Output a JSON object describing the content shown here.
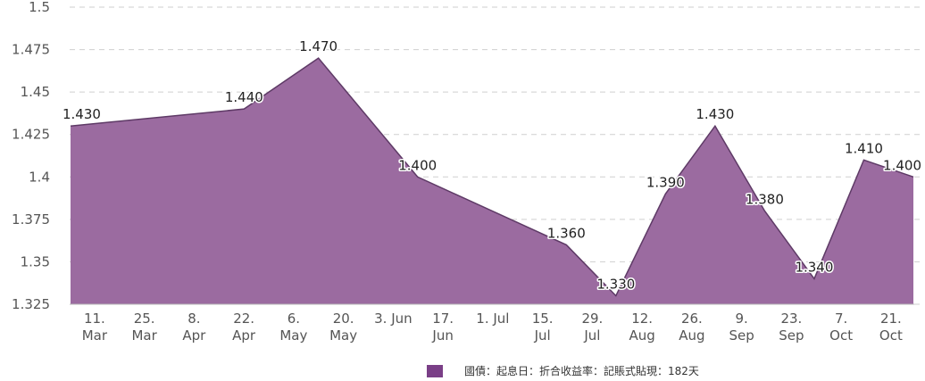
{
  "chart_data": {
    "type": "area",
    "y_ticks": [
      "1.325",
      "1.35",
      "1.375",
      "1.4",
      "1.425",
      "1.45",
      "1.475",
      "1.5"
    ],
    "ylim": [
      1.325,
      1.5
    ],
    "grid": true,
    "legend_position": "bottom",
    "categories": [
      [
        "11.",
        "Mar"
      ],
      [
        "25.",
        "Mar"
      ],
      [
        "8.",
        "Apr"
      ],
      [
        "22.",
        "Apr"
      ],
      [
        "6.",
        "May"
      ],
      [
        "20.",
        "May"
      ],
      [
        "3. Jun",
        ""
      ],
      [
        "17.",
        "Jun"
      ],
      [
        "1. Jul",
        ""
      ],
      [
        "15.",
        "Jul"
      ],
      [
        "29.",
        "Jul"
      ],
      [
        "12.",
        "Aug"
      ],
      [
        "26.",
        "Aug"
      ],
      [
        "9.",
        "Sep"
      ],
      [
        "23.",
        "Sep"
      ],
      [
        "7.",
        "Oct"
      ],
      [
        "21.",
        "Oct"
      ]
    ],
    "series": [
      {
        "name": "國債：起息日：折合收益率：記賬式貼現：182天",
        "color": "#9b6ba0",
        "points": [
          {
            "x": 0,
            "y": 1.43,
            "label": "1.430"
          },
          {
            "x": 3.5,
            "y": 1.44,
            "label": "1.440"
          },
          {
            "x": 5,
            "y": 1.47,
            "label": "1.470"
          },
          {
            "x": 7,
            "y": 1.4,
            "label": "1.400"
          },
          {
            "x": 10,
            "y": 1.36,
            "label": "1.360"
          },
          {
            "x": 11,
            "y": 1.33,
            "label": "1.330"
          },
          {
            "x": 12,
            "y": 1.39,
            "label": "1.390"
          },
          {
            "x": 13,
            "y": 1.43,
            "label": "1.430"
          },
          {
            "x": 14,
            "y": 1.38,
            "label": "1.380"
          },
          {
            "x": 15,
            "y": 1.34,
            "label": "1.340"
          },
          {
            "x": 16,
            "y": 1.41,
            "label": "1.410"
          },
          {
            "x": 17,
            "y": 1.4,
            "label": "1.400"
          }
        ]
      }
    ]
  }
}
